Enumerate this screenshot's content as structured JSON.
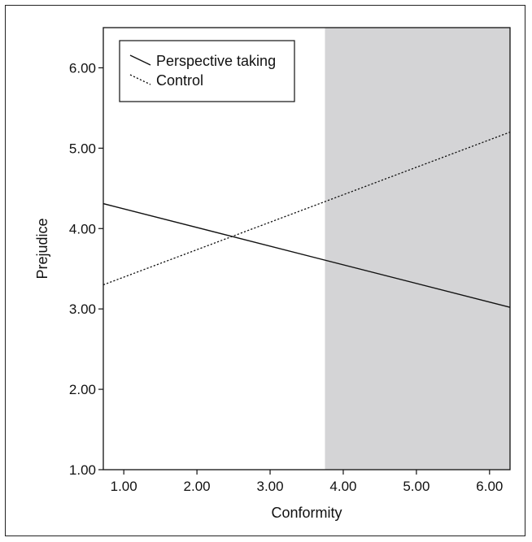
{
  "chart_data": {
    "type": "line",
    "xlabel": "Conformity",
    "ylabel": "Prejudice",
    "xlim": [
      0.72,
      6.28
    ],
    "ylim": [
      1.0,
      6.5
    ],
    "xticks": [
      1.0,
      2.0,
      3.0,
      4.0,
      5.0,
      6.0
    ],
    "xtick_labels": [
      "1.00",
      "2.00",
      "3.00",
      "4.00",
      "5.00",
      "6.00"
    ],
    "yticks": [
      1.0,
      2.0,
      3.0,
      4.0,
      5.0,
      6.0
    ],
    "ytick_labels": [
      "1.00",
      "2.00",
      "3.00",
      "4.00",
      "5.00",
      "6.00"
    ],
    "grid": false,
    "legend_position": "top-left",
    "shaded_region": {
      "x_from": 3.75,
      "x_to": 6.28,
      "color": "#d4d4d6"
    },
    "series": [
      {
        "name": "Perspective taking",
        "style": "solid",
        "color": "#111111",
        "x": [
          0.72,
          6.28
        ],
        "y": [
          4.31,
          3.02
        ]
      },
      {
        "name": "Control",
        "style": "dotted",
        "color": "#111111",
        "x": [
          0.72,
          6.28
        ],
        "y": [
          3.3,
          5.2
        ]
      }
    ]
  }
}
